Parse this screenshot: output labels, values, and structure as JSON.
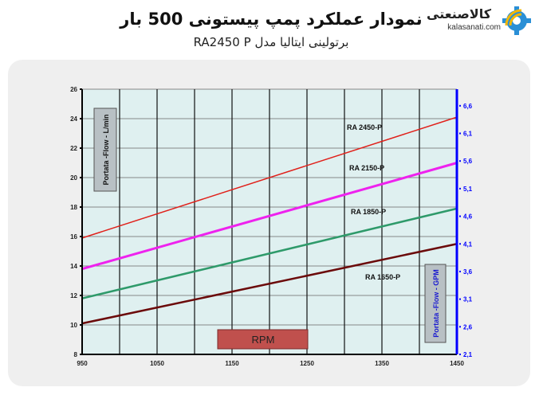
{
  "header": {
    "title": "نمودار عملکرد پمپ پیستونی 500 بار",
    "subtitle": "برتولینی ایتالیا مدل RA2450 P"
  },
  "logo": {
    "name_fa": "کالاصنعتی",
    "domain": "kalasanati.com",
    "icon": "gear-wifi-icon",
    "colors": {
      "gear": "#2a8fd6",
      "arcs": "#f2b705"
    }
  },
  "chart_data": {
    "type": "line",
    "xlabel": "RPM",
    "ylabel": "Portata -Flow -  L/min",
    "ylabel_right": "Portata -Flow -  GPM",
    "xlim": [
      950,
      1450
    ],
    "ylim": [
      8,
      26
    ],
    "ylim_right": [
      2.1,
      6.9
    ],
    "x_ticks": [
      950,
      1050,
      1150,
      1250,
      1350,
      1450
    ],
    "x_grid": [
      1000,
      1050,
      1100,
      1150,
      1200,
      1250,
      1300,
      1350,
      1400
    ],
    "y_ticks": [
      8,
      10,
      12,
      14,
      16,
      18,
      20,
      22,
      24,
      26
    ],
    "y_ticks_right": [
      "2,1",
      "2,6",
      "3,1",
      "3,6",
      "4,1",
      "4,6",
      "5,1",
      "5,6",
      "6,1",
      "6,6"
    ],
    "y_ticks_right_values": [
      2.1,
      2.6,
      3.1,
      3.6,
      4.1,
      4.6,
      5.1,
      5.6,
      6.1,
      6.6
    ],
    "grid": true,
    "colors": {
      "plot_bg": "#dff0f0",
      "right_axis": "#0000ff",
      "rpm_box": "#c0504d"
    },
    "series": [
      {
        "name": "RA 2450-P",
        "color": "#e0201a",
        "x": [
          950,
          1450
        ],
        "y": [
          15.9,
          24.1
        ]
      },
      {
        "name": "RA 2150-P",
        "color": "#ee22ee",
        "x": [
          950,
          1450
        ],
        "y": [
          13.8,
          21.0
        ]
      },
      {
        "name": "RA 1850-P",
        "color": "#2e9a6a",
        "x": [
          950,
          1450
        ],
        "y": [
          11.8,
          17.9
        ]
      },
      {
        "name": "RA 1650-P",
        "color": "#6b0a0a",
        "x": [
          950,
          1450
        ],
        "y": [
          10.1,
          15.5
        ]
      }
    ]
  }
}
